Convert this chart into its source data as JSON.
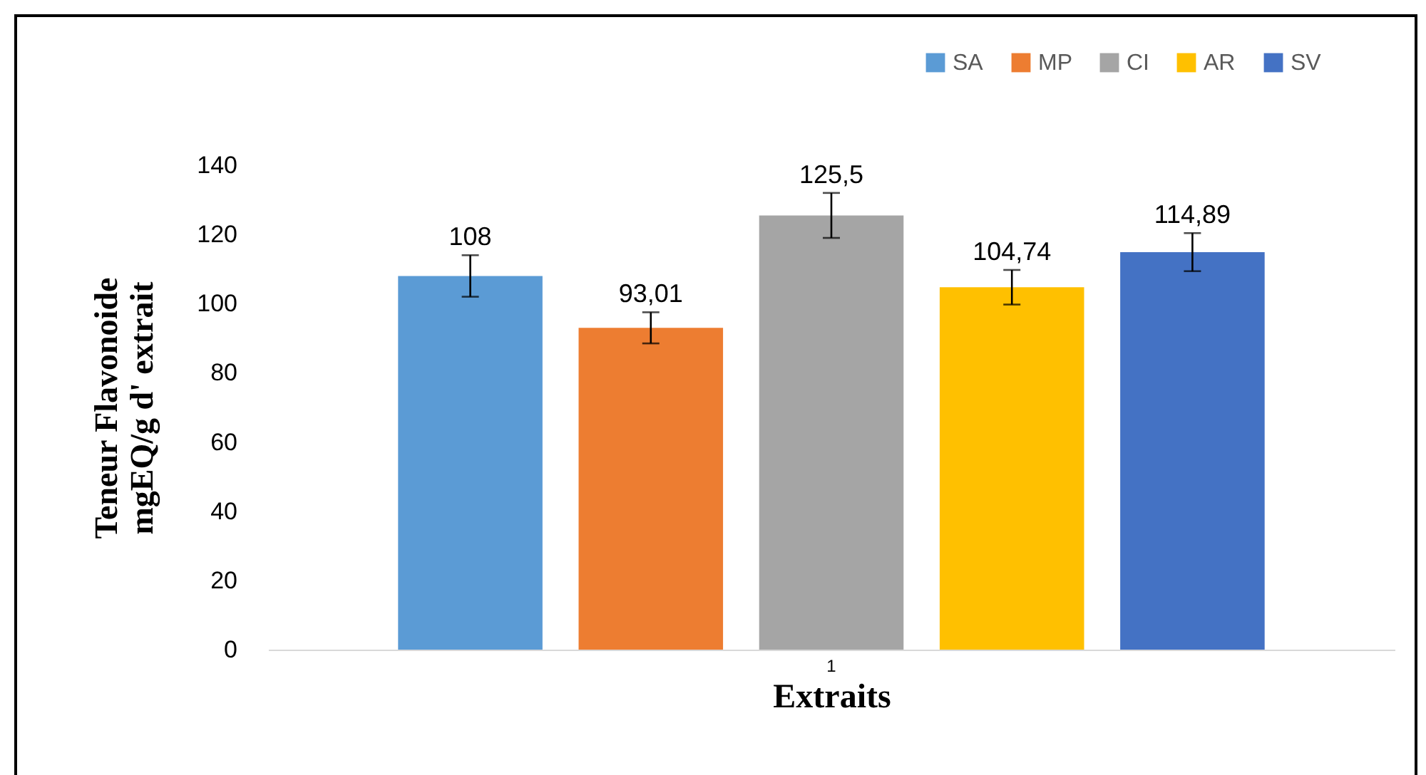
{
  "chart_data": {
    "type": "bar",
    "xlabel": "Extraits",
    "ylabel": "Teneur Flavonoide mgEQ/g d' extrait",
    "categories": [
      "1"
    ],
    "series": [
      {
        "name": "SA",
        "color": "#5b9bd5",
        "values": [
          108
        ],
        "errors": [
          6
        ],
        "value_labels": [
          "108"
        ]
      },
      {
        "name": "MP",
        "color": "#ed7d31",
        "values": [
          93.01
        ],
        "errors": [
          4.5
        ],
        "value_labels": [
          "93,01"
        ]
      },
      {
        "name": "CI",
        "color": "#a5a5a5",
        "values": [
          125.5
        ],
        "errors": [
          6.5
        ],
        "value_labels": [
          "125,5"
        ]
      },
      {
        "name": "AR",
        "color": "#ffc000",
        "values": [
          104.74
        ],
        "errors": [
          5
        ],
        "value_labels": [
          "104,74"
        ]
      },
      {
        "name": "SV",
        "color": "#4472c4",
        "values": [
          114.89
        ],
        "errors": [
          5.5
        ],
        "value_labels": [
          "114,89"
        ]
      }
    ],
    "ylim": [
      0,
      140
    ],
    "yticks": [
      0,
      20,
      40,
      60,
      80,
      100,
      120,
      140
    ],
    "grid": false,
    "legend": "top right"
  }
}
